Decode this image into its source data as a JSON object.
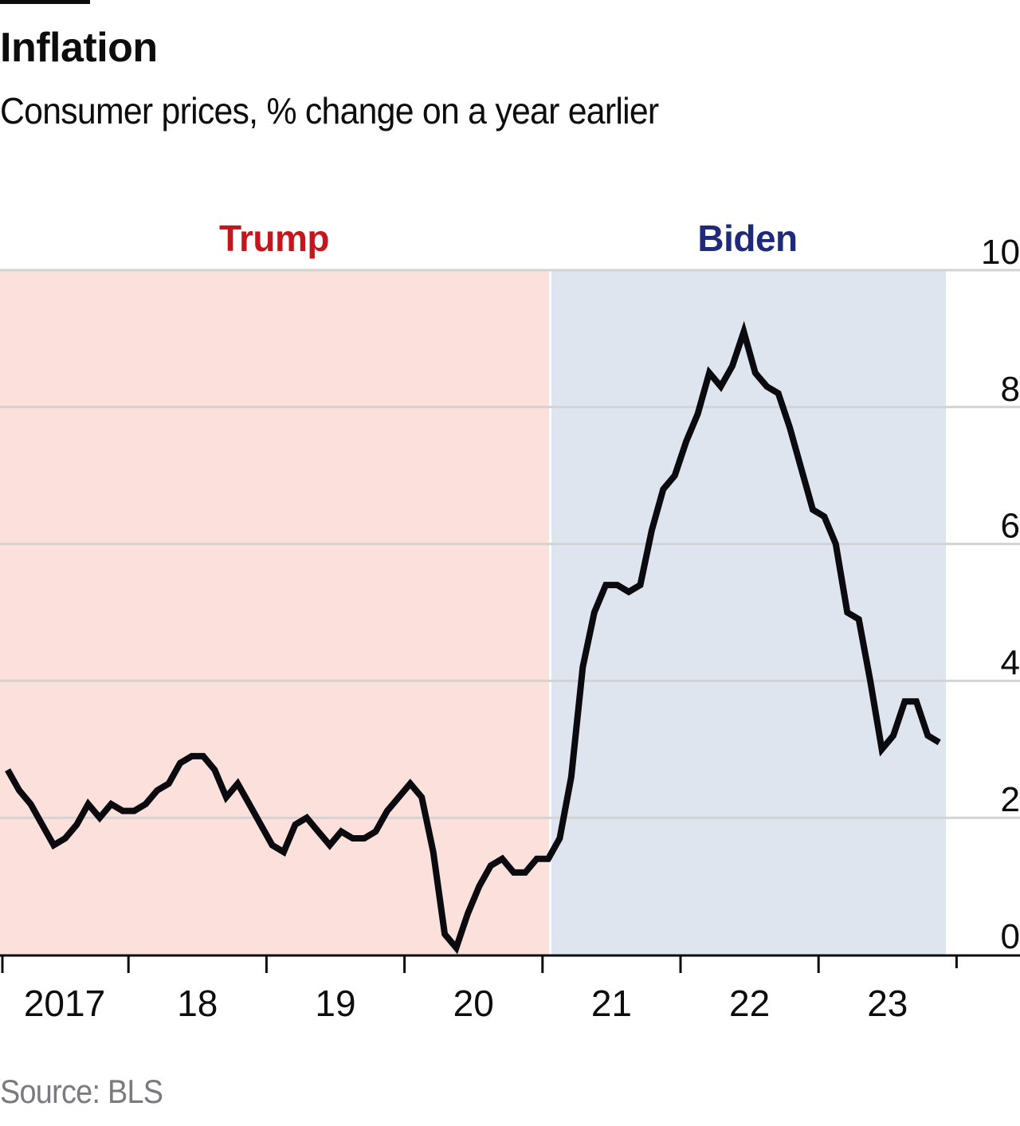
{
  "title": "Inflation",
  "subtitle": "Consumer prices, % change on a year earlier",
  "source": "Source: BLS",
  "colors": {
    "trump_bg": "#FBE0DC",
    "biden_bg": "#DFE5EF",
    "trump_label": "#C4161C",
    "biden_label": "#1F2A78",
    "line": "#0a0a0f",
    "grid": "#d3d3d3",
    "axis": "#0d0d0d"
  },
  "chart_data": {
    "type": "line",
    "title": "Inflation",
    "subtitle": "Consumer prices, % change on a year earlier",
    "xlabel": "",
    "ylabel": "",
    "ylim": [
      0,
      10
    ],
    "yticks": [
      0,
      2,
      4,
      6,
      8,
      10
    ],
    "ytick_labels": [
      "0",
      "2",
      "4",
      "6",
      "8",
      "10"
    ],
    "y_axis_position": "right",
    "grid": true,
    "xtick_labels": [
      "2017",
      "18",
      "19",
      "20",
      "21",
      "22",
      "23"
    ],
    "x_start": "2017-02",
    "x_end": "2023-11",
    "frequency": "monthly",
    "eras": [
      {
        "name": "Trump",
        "start": "2017-01",
        "end": "2021-01"
      },
      {
        "name": "Biden",
        "start": "2021-01",
        "end": "2023-12"
      }
    ],
    "series": [
      {
        "name": "CPI % change on a year earlier",
        "x": [
          "2017-02",
          "2017-03",
          "2017-04",
          "2017-05",
          "2017-06",
          "2017-07",
          "2017-08",
          "2017-09",
          "2017-10",
          "2017-11",
          "2017-12",
          "2018-01",
          "2018-02",
          "2018-03",
          "2018-04",
          "2018-05",
          "2018-06",
          "2018-07",
          "2018-08",
          "2018-09",
          "2018-10",
          "2018-11",
          "2018-12",
          "2019-01",
          "2019-02",
          "2019-03",
          "2019-04",
          "2019-05",
          "2019-06",
          "2019-07",
          "2019-08",
          "2019-09",
          "2019-10",
          "2019-11",
          "2019-12",
          "2020-01",
          "2020-02",
          "2020-03",
          "2020-04",
          "2020-05",
          "2020-06",
          "2020-07",
          "2020-08",
          "2020-09",
          "2020-10",
          "2020-11",
          "2020-12",
          "2021-01",
          "2021-02",
          "2021-03",
          "2021-04",
          "2021-05",
          "2021-06",
          "2021-07",
          "2021-08",
          "2021-09",
          "2021-10",
          "2021-11",
          "2021-12",
          "2022-01",
          "2022-02",
          "2022-03",
          "2022-04",
          "2022-05",
          "2022-06",
          "2022-07",
          "2022-08",
          "2022-09",
          "2022-10",
          "2022-11",
          "2022-12",
          "2023-01",
          "2023-02",
          "2023-03",
          "2023-04",
          "2023-05",
          "2023-06",
          "2023-07",
          "2023-08",
          "2023-09",
          "2023-10",
          "2023-11"
        ],
        "values": [
          2.7,
          2.4,
          2.2,
          1.9,
          1.6,
          1.7,
          1.9,
          2.2,
          2.0,
          2.2,
          2.1,
          2.1,
          2.2,
          2.4,
          2.5,
          2.8,
          2.9,
          2.9,
          2.7,
          2.3,
          2.5,
          2.2,
          1.9,
          1.6,
          1.5,
          1.9,
          2.0,
          1.8,
          1.6,
          1.8,
          1.7,
          1.7,
          1.8,
          2.1,
          2.3,
          2.5,
          2.3,
          1.5,
          0.3,
          0.1,
          0.6,
          1.0,
          1.3,
          1.4,
          1.2,
          1.2,
          1.4,
          1.4,
          1.7,
          2.6,
          4.2,
          5.0,
          5.4,
          5.4,
          5.3,
          5.4,
          6.2,
          6.8,
          7.0,
          7.5,
          7.9,
          8.5,
          8.3,
          8.6,
          9.1,
          8.5,
          8.3,
          8.2,
          7.7,
          7.1,
          6.5,
          6.4,
          6.0,
          5.0,
          4.9,
          4.0,
          3.0,
          3.2,
          3.7,
          3.7,
          3.2,
          3.1
        ]
      }
    ]
  }
}
